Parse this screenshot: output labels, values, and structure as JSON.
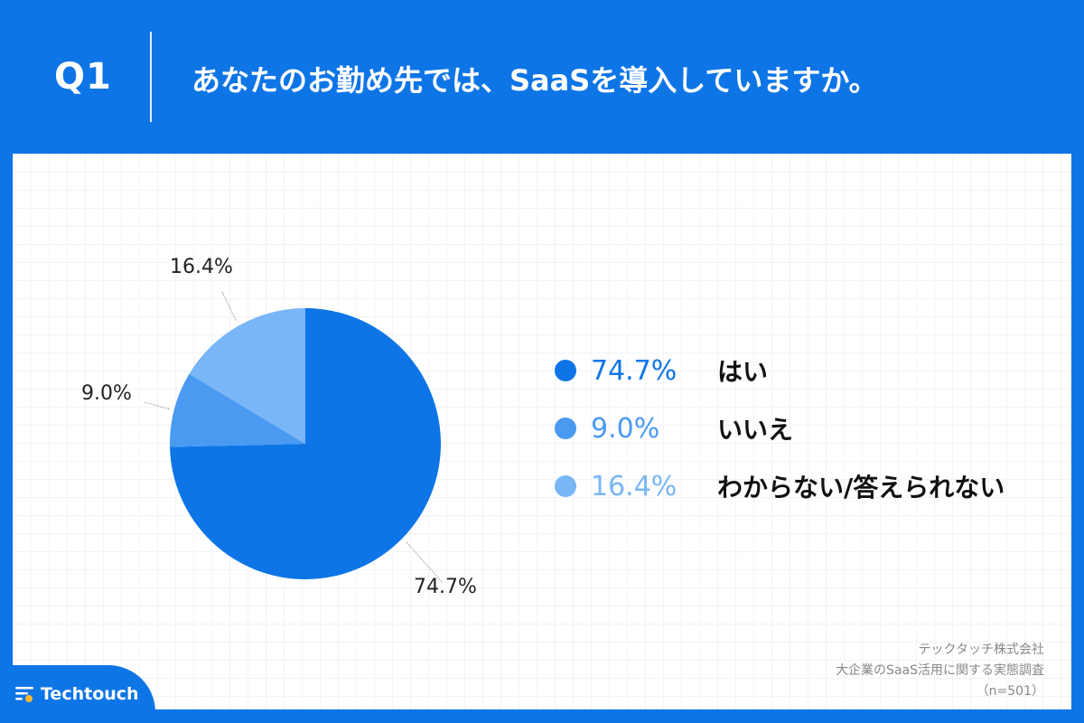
{
  "header": {
    "question_number": "Q1",
    "question_text": "あなたのお勤め先では、SaaSを導入していますか。"
  },
  "colors": {
    "brand_blue": "#0e75e6",
    "slice_yes": "#0e75e6",
    "slice_no": "#4a9af2",
    "slice_unknown": "#79b6f7"
  },
  "chart_data": {
    "type": "pie",
    "title": "あなたのお勤め先では、SaaSを導入していますか。",
    "categories": [
      "はい",
      "いいえ",
      "わからない/答えられない"
    ],
    "values": [
      74.7,
      9.0,
      16.4
    ],
    "unit": "%",
    "colors": [
      "#0e75e6",
      "#4a9af2",
      "#79b6f7"
    ],
    "start_angle": "12 o'clock, clockwise",
    "data_labels": [
      "74.7%",
      "9.0%",
      "16.4%"
    ],
    "legend_position": "right",
    "sample_size": "n=501"
  },
  "pie_labels": {
    "yes": "74.7%",
    "no": "9.0%",
    "unknown": "16.4%"
  },
  "legend": [
    {
      "pct": "74.7%",
      "label": "はい",
      "color": "#0e75e6"
    },
    {
      "pct": "9.0%",
      "label": "いいえ",
      "color": "#4a9af2"
    },
    {
      "pct": "16.4%",
      "label": "わからない/答えられない",
      "color": "#79b6f7"
    }
  ],
  "credit": {
    "company": "テックタッチ株式会社",
    "survey": "大企業のSaaS活用に関する実態調査",
    "sample": "（n=501）"
  },
  "logo": {
    "text": "Techtouch"
  }
}
